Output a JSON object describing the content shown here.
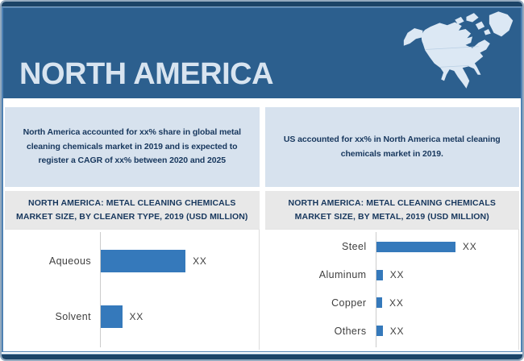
{
  "palette": {
    "frame_border": "#94aabf",
    "inner_border": "#4f81b3",
    "strip_navy": "#1c4467",
    "header_blue": "#2c5f8e",
    "header_text": "#d8e4f0",
    "panel_blue": "#d7e2ee",
    "title_band_gray": "#e8e8e8",
    "navy_text": "#17375d",
    "bar_blue": "#3579bb",
    "chart_label_gray": "#3f3f3f"
  },
  "header": {
    "title": "NORTH AMERICA"
  },
  "insights": {
    "global": "North America accounted for xx% share in global metal cleaning chemicals market in 2019 and is expected to register a CAGR of xx% between 2020 and 2025",
    "us": "US accounted for xx% in North America metal cleaning chemicals market in 2019."
  },
  "chart_data": [
    {
      "type": "bar",
      "orientation": "horizontal",
      "title": "NORTH AMERICA: METAL CLEANING CHEMICALS MARKET SIZE, BY CLEANER TYPE, 2019 (USD MILLION)",
      "categories": [
        "Aqueous",
        "Solvent"
      ],
      "values": [
        "XX",
        "XX"
      ],
      "relative_lengths": [
        0.54,
        0.14
      ],
      "grid": false,
      "value_axis_visible": false,
      "legend": "none"
    },
    {
      "type": "bar",
      "orientation": "horizontal",
      "title": "NORTH AMERICA: METAL CLEANING CHEMICALS MARKET SIZE, BY METAL, 2019 (USD MILLION)",
      "categories": [
        "Steel",
        "Aluminum",
        "Copper",
        "Others"
      ],
      "values": [
        "XX",
        "XX",
        "XX",
        "XX"
      ],
      "relative_lengths": [
        0.56,
        0.052,
        0.048,
        0.052
      ],
      "grid": false,
      "value_axis_visible": false,
      "legend": "none"
    }
  ]
}
